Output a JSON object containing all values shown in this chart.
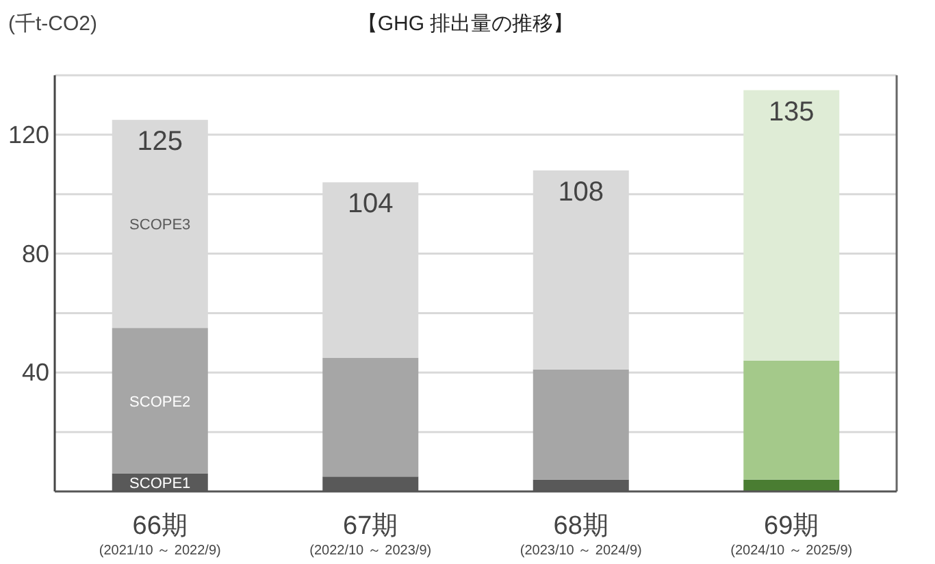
{
  "chart_data": {
    "type": "bar",
    "title": "【GHG 排出量の推移】",
    "ylabel": "(千t-CO2)",
    "categories": [
      "66期\n(2021/10 ～ 2022/9)",
      "67期\n(2022/10 ～ 2023/9)",
      "68期\n(2023/10 ～ 2024/9)",
      "69期\n(2024/10 ～ 2025/9)"
    ],
    "stacked": true,
    "series": [
      {
        "name": "SCOPE1",
        "colors": [
          "#595959",
          "#595959",
          "#595959",
          "#4a7d32"
        ],
        "values": [
          6,
          5,
          4,
          4
        ]
      },
      {
        "name": "SCOPE2",
        "colors": [
          "#a6a6a6",
          "#a6a6a6",
          "#a6a6a6",
          "#a4c98a"
        ],
        "values": [
          49,
          40,
          37,
          40
        ]
      },
      {
        "name": "SCOPE3",
        "colors": [
          "#d9d9d9",
          "#d9d9d9",
          "#d9d9d9",
          "#dfecd6"
        ],
        "values": [
          70,
          59,
          67,
          91
        ]
      }
    ],
    "totals": [
      "125",
      "104",
      "108",
      "135"
    ],
    "ylim": [
      0,
      140
    ],
    "yticks": [
      {
        "value": 20,
        "label": null
      },
      40,
      {
        "value": 60,
        "label": null
      },
      80,
      {
        "value": 100,
        "label": null
      },
      120,
      {
        "value": 140,
        "label": null
      }
    ],
    "grid": "y"
  }
}
